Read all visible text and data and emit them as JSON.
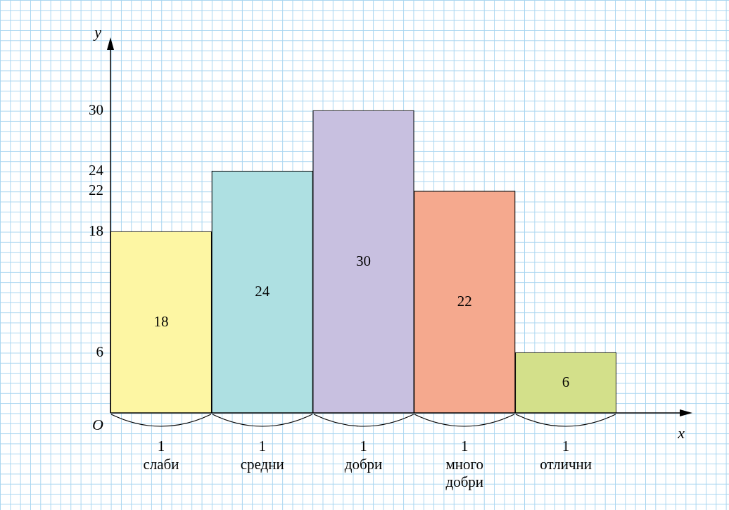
{
  "chart_data": {
    "type": "bar",
    "xlabel": "x",
    "ylabel": "y",
    "categories": [
      "слаби",
      "средни",
      "добри",
      "много добри",
      "отлични"
    ],
    "values": [
      18,
      24,
      30,
      22,
      6
    ],
    "colors": [
      "#fdf6a3",
      "#aee0e2",
      "#c8c0e0",
      "#f5a98e",
      "#d3e08a"
    ],
    "ylim": [
      0,
      36
    ],
    "yticks": [
      6,
      18,
      22,
      24,
      30
    ],
    "data_labels": true,
    "grid": false,
    "legend": false,
    "annotations": [
      "O",
      "1",
      "1",
      "1",
      "1",
      "1"
    ]
  }
}
